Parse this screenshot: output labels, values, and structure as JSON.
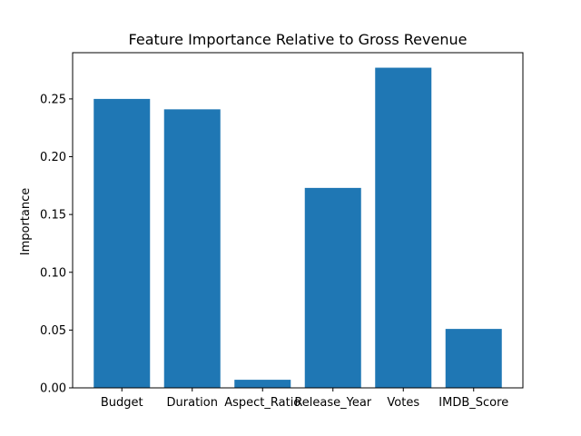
{
  "chart_data": {
    "type": "bar",
    "title": "Feature Importance Relative to Gross Revenue",
    "xlabel": "",
    "ylabel": "Importance",
    "categories": [
      "Budget",
      "Duration",
      "Aspect_Ratio",
      "Release_Year",
      "Votes",
      "IMDB_Score"
    ],
    "values": [
      0.25,
      0.241,
      0.007,
      0.173,
      0.277,
      0.051
    ],
    "ylim": [
      0,
      0.29
    ],
    "yticks": [
      0.0,
      0.05,
      0.1,
      0.15,
      0.2,
      0.25
    ],
    "ytick_labels": [
      "0.00",
      "0.05",
      "0.10",
      "0.15",
      "0.20",
      "0.25"
    ],
    "grid": false,
    "legend": "none",
    "colors": {
      "bar": "#1f77b4",
      "axis": "#000000",
      "background": "#ffffff"
    }
  }
}
